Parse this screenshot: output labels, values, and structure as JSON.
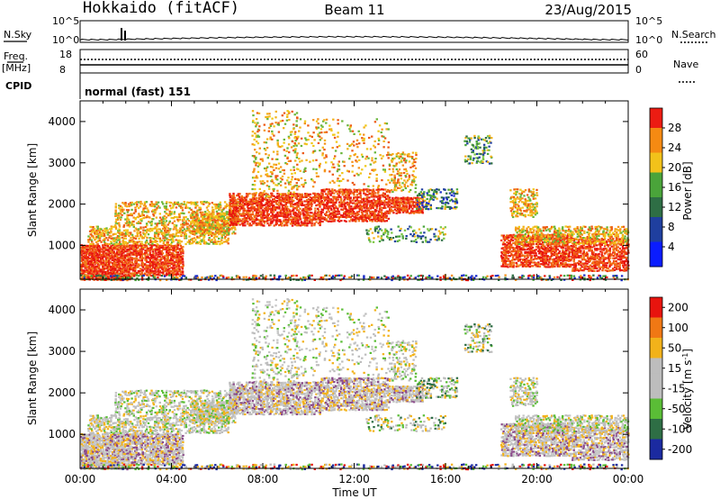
{
  "header": {
    "station": "Hokkaido (fitACF)",
    "beam": "Beam 11",
    "date": "23/Aug/2015"
  },
  "top_panel": {
    "left_label": "N.Sky",
    "right_label": "N.Search",
    "left_ticks": [
      "10^5",
      "10^0"
    ],
    "right_ticks": [
      "10^5",
      "10^0"
    ]
  },
  "freq_panel": {
    "left_label": "Freq.",
    "left_unit": "[MHz]",
    "right_label": "Nave",
    "left_ticks": [
      "18",
      "8"
    ],
    "right_ticks": [
      "60",
      "0"
    ]
  },
  "cpid_panel": {
    "label": "CPID",
    "text": "normal (fast) 151"
  },
  "chart_data": [
    {
      "type": "heatmap",
      "title": "",
      "xlabel": "Time UT",
      "ylabel": "Slant Range [km]",
      "x_ticks": [
        "00:00",
        "04:00",
        "08:00",
        "12:00",
        "16:00",
        "20:00",
        "00:00"
      ],
      "y_ticks": [
        1000,
        2000,
        3000,
        4000
      ],
      "xlim": [
        0,
        24
      ],
      "ylim": [
        180,
        4500
      ],
      "colorbar": {
        "label": "Power [dB]",
        "ticks": [
          4,
          8,
          12,
          16,
          20,
          24,
          28
        ],
        "colors": [
          "#0a1cff",
          "#1f3f9f",
          "#2e6e45",
          "#4aa43a",
          "#f2c21a",
          "#f58a12",
          "#ec1c12"
        ]
      }
    },
    {
      "type": "heatmap",
      "title": "",
      "xlabel": "Time UT",
      "ylabel": "Slant Range [km]",
      "x_ticks": [
        "00:00",
        "04:00",
        "08:00",
        "12:00",
        "16:00",
        "20:00",
        "00:00"
      ],
      "y_ticks": [
        1000,
        2000,
        3000,
        4000
      ],
      "xlim": [
        0,
        24
      ],
      "ylim": [
        180,
        4500
      ],
      "colorbar": {
        "label": "Velocity [m s",
        "label_sup": "-1",
        "label_end": "]",
        "ticks": [
          200,
          100,
          50,
          15,
          -15,
          -50,
          -100,
          -200
        ],
        "colors": [
          "#1b2aa0",
          "#2e6e45",
          "#5abd36",
          "#bdbdbd",
          "#bdbdbd",
          "#f2b21a",
          "#f07814",
          "#e8140e"
        ]
      }
    }
  ]
}
